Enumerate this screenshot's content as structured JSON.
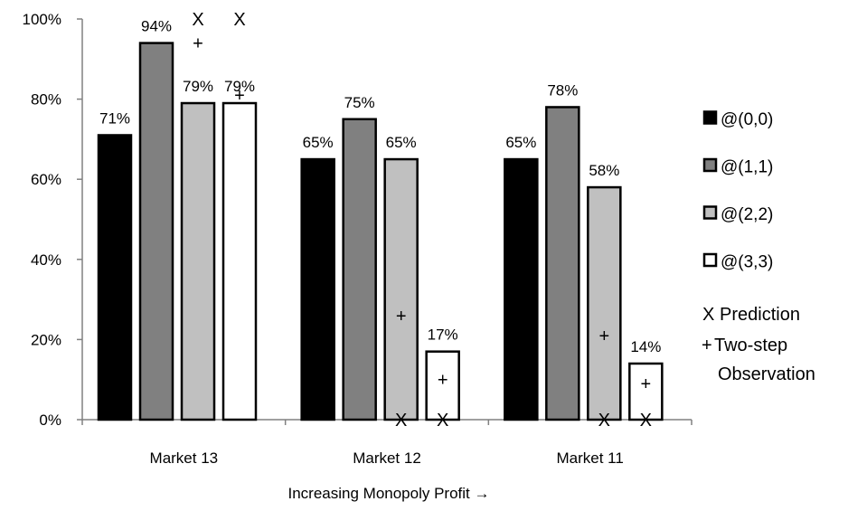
{
  "chart_data": {
    "type": "bar",
    "xlabel": "Increasing Monopoly Profit →",
    "ylabel": "",
    "ylim": [
      0,
      100
    ],
    "y_ticks": [
      "0%",
      "20%",
      "40%",
      "60%",
      "80%",
      "100%"
    ],
    "grid": false,
    "legend_position": "right",
    "categories": [
      "Market 13",
      "Market 12",
      "Market 11"
    ],
    "series": [
      {
        "name": "@(0,0)",
        "color": "#000000",
        "values": [
          71,
          65,
          65
        ],
        "labels": [
          "71%",
          "65%",
          "65%"
        ]
      },
      {
        "name": "@(1,1)",
        "color": "#808080",
        "values": [
          94,
          75,
          78
        ],
        "labels": [
          "94%",
          "75%",
          "78%"
        ]
      },
      {
        "name": "@(2,2)",
        "color": "#c0c0c0",
        "values": [
          79,
          65,
          58
        ],
        "labels": [
          "79%",
          "65%",
          "58%"
        ]
      },
      {
        "name": "@(3,3)",
        "color": "#ffffff",
        "values": [
          79,
          17,
          14
        ],
        "labels": [
          "79%",
          "17%",
          "14%"
        ]
      }
    ],
    "markers": [
      {
        "glyph": "X",
        "legend": "Prediction",
        "points": [
          {
            "category": "Market 13",
            "series": "@(2,2)",
            "y": 100
          },
          {
            "category": "Market 13",
            "series": "@(3,3)",
            "y": 100
          },
          {
            "category": "Market 12",
            "series": "@(2,2)",
            "y": 0
          },
          {
            "category": "Market 12",
            "series": "@(3,3)",
            "y": 0
          },
          {
            "category": "Market 11",
            "series": "@(2,2)",
            "y": 0
          },
          {
            "category": "Market 11",
            "series": "@(3,3)",
            "y": 0
          }
        ]
      },
      {
        "glyph": "+",
        "legend": "Two-step Observation",
        "legend_lines": [
          "Two-step",
          "Observation"
        ],
        "points": [
          {
            "category": "Market 13",
            "series": "@(2,2)",
            "y": 94
          },
          {
            "category": "Market 13",
            "series": "@(3,3)",
            "y": 81
          },
          {
            "category": "Market 12",
            "series": "@(2,2)",
            "y": 26
          },
          {
            "category": "Market 12",
            "series": "@(3,3)",
            "y": 10
          },
          {
            "category": "Market 11",
            "series": "@(2,2)",
            "y": 21
          },
          {
            "category": "Market 11",
            "series": "@(3,3)",
            "y": 9
          }
        ]
      }
    ]
  }
}
